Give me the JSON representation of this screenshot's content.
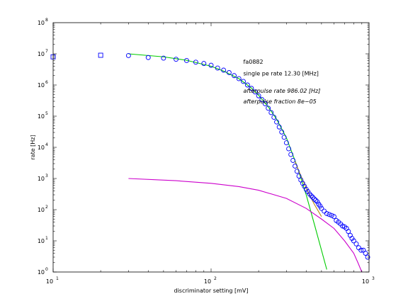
{
  "chart_data": {
    "type": "scatter",
    "xlabel": "discriminator setting [mV]",
    "ylabel": "rate [Hz]",
    "x_scale": "log",
    "y_scale": "log",
    "xlim": [
      10,
      1000
    ],
    "ylim": [
      1,
      100000000
    ],
    "grid": false,
    "x_ticks": [
      {
        "base": "10",
        "exp": "1",
        "value": 10
      },
      {
        "base": "10",
        "exp": "2",
        "value": 100
      },
      {
        "base": "10",
        "exp": "3",
        "value": 1000
      }
    ],
    "y_ticks": [
      {
        "base": "10",
        "exp": "0",
        "value": 1
      },
      {
        "base": "10",
        "exp": "1",
        "value": 10
      },
      {
        "base": "10",
        "exp": "2",
        "value": 100
      },
      {
        "base": "10",
        "exp": "3",
        "value": 1000
      },
      {
        "base": "10",
        "exp": "4",
        "value": 10000
      },
      {
        "base": "10",
        "exp": "5",
        "value": 100000
      },
      {
        "base": "10",
        "exp": "6",
        "value": 1000000
      },
      {
        "base": "10",
        "exp": "7",
        "value": 10000000
      },
      {
        "base": "10",
        "exp": "8",
        "value": 100000000
      }
    ],
    "annotations": [
      {
        "text": "fa0882",
        "italic": false
      },
      {
        "text": "single pe rate 12.30 [MHz]",
        "italic": false
      },
      {
        "text": "afterpulse rate 986.02 [Hz]",
        "italic": true
      },
      {
        "text": "afterpulse fraction 8e−05",
        "italic": true
      }
    ],
    "colors": {
      "markers": "#0000ff",
      "single_pe_fit": "#00cc00",
      "afterpulse_fit": "#cc00cc",
      "total_fit": "#b8860b"
    },
    "series": [
      {
        "marker": "square",
        "points": [
          [
            10,
            8000000
          ],
          [
            20,
            9000000
          ]
        ]
      },
      {
        "marker": "circle",
        "points": [
          [
            30,
            8800000
          ],
          [
            40,
            7600000
          ],
          [
            50,
            7300000
          ],
          [
            60,
            6700000
          ],
          [
            70,
            6100000
          ],
          [
            80,
            5400000
          ],
          [
            90,
            4900000
          ],
          [
            100,
            4300000
          ],
          [
            110,
            3500000
          ],
          [
            120,
            3000000
          ],
          [
            130,
            2500000
          ],
          [
            140,
            2000000
          ],
          [
            150,
            1600000
          ],
          [
            160,
            1300000
          ],
          [
            170,
            1000000
          ],
          [
            180,
            780000
          ],
          [
            190,
            600000
          ],
          [
            200,
            450000
          ],
          [
            210,
            340000
          ],
          [
            220,
            250000
          ],
          [
            230,
            180000
          ],
          [
            240,
            130000
          ],
          [
            250,
            92000
          ],
          [
            260,
            65000
          ],
          [
            270,
            45000
          ],
          [
            280,
            31000
          ],
          [
            290,
            21000
          ],
          [
            300,
            14000
          ],
          [
            310,
            9000
          ],
          [
            320,
            5900
          ],
          [
            330,
            3800
          ],
          [
            340,
            2500
          ],
          [
            350,
            1700
          ],
          [
            360,
            1200
          ],
          [
            370,
            900
          ],
          [
            380,
            700
          ],
          [
            390,
            560
          ],
          [
            400,
            450
          ],
          [
            410,
            380
          ],
          [
            420,
            320
          ],
          [
            430,
            280
          ],
          [
            440,
            250
          ],
          [
            450,
            220
          ],
          [
            460,
            200
          ],
          [
            470,
            180
          ],
          [
            480,
            150
          ],
          [
            490,
            130
          ],
          [
            500,
            110
          ],
          [
            520,
            90
          ],
          [
            540,
            75
          ],
          [
            560,
            70
          ],
          [
            580,
            65
          ],
          [
            600,
            60
          ],
          [
            620,
            45
          ],
          [
            640,
            40
          ],
          [
            660,
            35
          ],
          [
            680,
            30
          ],
          [
            700,
            28
          ],
          [
            720,
            25
          ],
          [
            740,
            20
          ],
          [
            760,
            15
          ],
          [
            780,
            12
          ],
          [
            800,
            10
          ],
          [
            830,
            8
          ],
          [
            860,
            6
          ],
          [
            890,
            5
          ],
          [
            920,
            5
          ],
          [
            950,
            4
          ],
          [
            980,
            3
          ]
        ]
      }
    ],
    "fits": [
      {
        "color_key": "single_pe_fit",
        "points": [
          [
            30,
            10000000
          ],
          [
            50,
            8000000
          ],
          [
            70,
            6200000
          ],
          [
            100,
            4000000
          ],
          [
            120,
            2800000
          ],
          [
            150,
            1600000
          ],
          [
            180,
            800000
          ],
          [
            200,
            470000
          ],
          [
            230,
            200000
          ],
          [
            260,
            80000
          ],
          [
            300,
            20000
          ],
          [
            350,
            2500
          ],
          [
            400,
            300
          ],
          [
            450,
            35
          ],
          [
            500,
            5
          ],
          [
            540,
            1.2
          ]
        ]
      },
      {
        "color_key": "afterpulse_fit",
        "points": [
          [
            30,
            1000
          ],
          [
            60,
            850
          ],
          [
            100,
            700
          ],
          [
            150,
            550
          ],
          [
            200,
            420
          ],
          [
            300,
            230
          ],
          [
            400,
            110
          ],
          [
            500,
            50
          ],
          [
            600,
            25
          ],
          [
            700,
            10
          ],
          [
            800,
            4
          ],
          [
            850,
            2
          ],
          [
            900,
            1
          ]
        ]
      },
      {
        "color_key": "total_fit",
        "points": [
          [
            340,
            3500
          ],
          [
            360,
            1700
          ],
          [
            380,
            900
          ],
          [
            400,
            500
          ],
          [
            420,
            300
          ],
          [
            450,
            150
          ],
          [
            500,
            60
          ]
        ]
      }
    ]
  }
}
